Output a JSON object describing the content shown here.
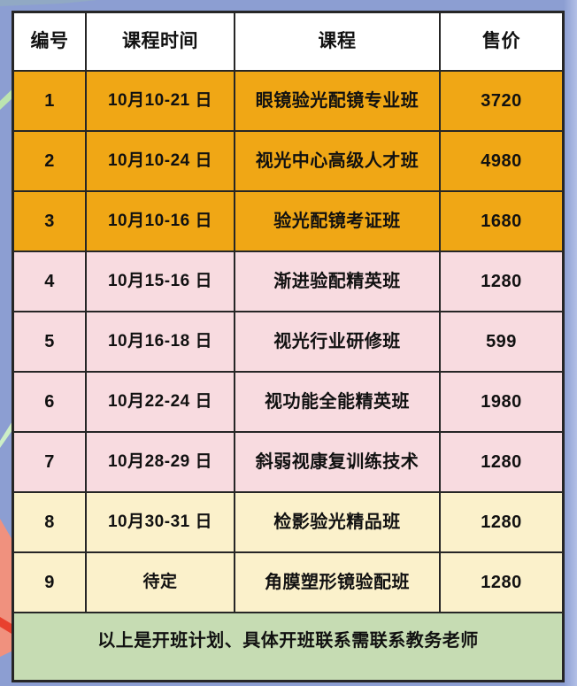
{
  "chart_data": {
    "type": "table",
    "columns": [
      "编号",
      "课程时间",
      "课程",
      "售价"
    ],
    "rows": [
      {
        "no": "1",
        "time": "10月10-21 日",
        "course": "眼镜验光配镜专业班",
        "price": "3720",
        "theme": "gold"
      },
      {
        "no": "2",
        "time": "10月10-24 日",
        "course": "视光中心高级人才班",
        "price": "4980",
        "theme": "gold"
      },
      {
        "no": "3",
        "time": "10月10-16 日",
        "course": "验光配镜考证班",
        "price": "1680",
        "theme": "gold"
      },
      {
        "no": "4",
        "time": "10月15-16 日",
        "course": "渐进验配精英班",
        "price": "1280",
        "theme": "pink"
      },
      {
        "no": "5",
        "time": "10月16-18 日",
        "course": "视光行业研修班",
        "price": "599",
        "theme": "pink"
      },
      {
        "no": "6",
        "time": "10月22-24 日",
        "course": "视功能全能精英班",
        "price": "1980",
        "theme": "pink"
      },
      {
        "no": "7",
        "time": "10月28-29 日",
        "course": "斜弱视康复训练技术",
        "price": "1280",
        "theme": "pink"
      },
      {
        "no": "8",
        "time": "10月30-31 日",
        "course": "检影验光精品班",
        "price": "1280",
        "theme": "cream"
      },
      {
        "no": "9",
        "time": "待定",
        "course": "角膜塑形镜验配班",
        "price": "1280",
        "theme": "cream"
      }
    ],
    "footer_note": "以上是开班计划、具体开班联系需联系教务老师",
    "legend_position": "none",
    "grid": "all-borders"
  },
  "colors": {
    "background": "#8c9ed2",
    "background_edge": "#b2bfe6",
    "header_bg": "#ffffff",
    "gold": "#f0a715",
    "pink": "#f8dbe0",
    "cream": "#fbf1cb",
    "footer_bg": "#c6dcb3",
    "border": "#262626",
    "text": "#111111",
    "decor_green": "#bce4b0",
    "decor_green_light": "#cdeec6",
    "decor_coral": "#f0917e",
    "decor_red": "#e8402e",
    "decor_teal": "#93aebe"
  }
}
